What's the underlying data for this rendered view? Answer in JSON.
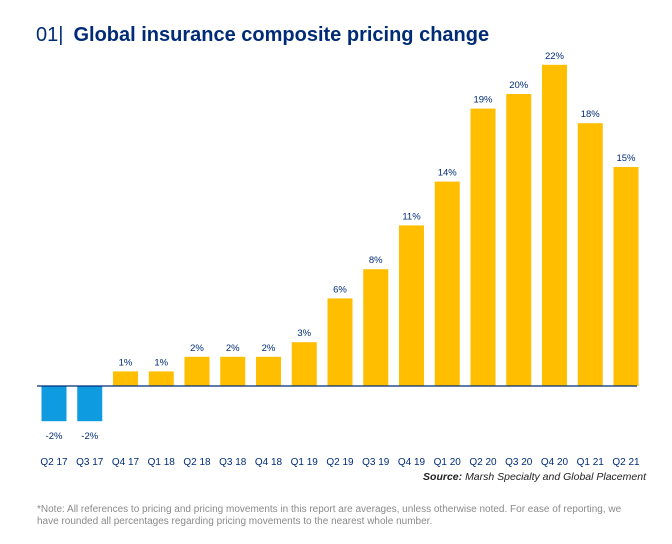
{
  "title": {
    "number": "01|",
    "text": "Global insurance composite pricing change"
  },
  "chart_data": {
    "type": "bar",
    "title": "Global insurance composite pricing change",
    "categories": [
      "Q2 17",
      "Q3 17",
      "Q4 17",
      "Q1 18",
      "Q2 18",
      "Q3 18",
      "Q4 18",
      "Q1 19",
      "Q2 19",
      "Q3 19",
      "Q4 19",
      "Q1 20",
      "Q2 20",
      "Q3 20",
      "Q4 20",
      "Q1 21",
      "Q2 21"
    ],
    "values": [
      -2,
      -2,
      1,
      1,
      2,
      2,
      2,
      3,
      6,
      8,
      11,
      14,
      19,
      20,
      22,
      18,
      15
    ],
    "data_labels": [
      "-2%",
      "-2%",
      "1%",
      "1%",
      "2%",
      "2%",
      "2%",
      "3%",
      "6%",
      "8%",
      "11%",
      "14%",
      "19%",
      "20%",
      "22%",
      "18%",
      "15%"
    ],
    "unit": "%",
    "xlabel": "",
    "ylabel": "",
    "ylim": [
      -2.5,
      22
    ],
    "grid": false,
    "colors": {
      "positive": "#FFBE00",
      "negative": "#0E9BE0",
      "baseline": "#002C77",
      "labels": "#002C77"
    }
  },
  "source": {
    "label": "Source:",
    "text": "Marsh Specialty and Global Placement"
  },
  "note": "*Note: All references to pricing and pricing movements in this report are averages, unless otherwise noted. For ease of reporting, we have rounded all percentages regarding pricing movements to the nearest whole number."
}
